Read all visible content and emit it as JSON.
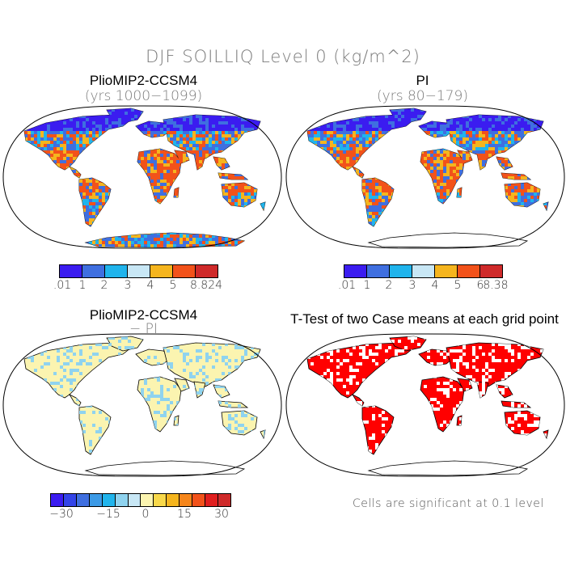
{
  "figure": {
    "title": "DJF SOILLIQ Level 0 (kg/m^2)"
  },
  "panels": [
    {
      "title": "PlioMIP2-CCSM4",
      "subtitle": "(yrs 1000−1099)"
    },
    {
      "title": "PI",
      "subtitle": "(yrs 80−179)"
    },
    {
      "title": "PlioMIP2-CCSM4",
      "subtitle": "− PI"
    },
    {
      "title": "T-Test of two Case means at each grid point",
      "subtitle": ""
    }
  ],
  "colorbars": {
    "top_left": {
      "colors": [
        "#3b1cf0",
        "#3f6fe0",
        "#20b4ec",
        "#c8e7f5",
        "#f5b51e",
        "#f2521a",
        "#cf2a2a"
      ],
      "labels": [
        ".01",
        "1",
        "2",
        "3",
        "4",
        "5",
        "8.824"
      ]
    },
    "top_right": {
      "colors": [
        "#3b1cf0",
        "#3f6fe0",
        "#20b4ec",
        "#c8e7f5",
        "#f5b51e",
        "#f2521a",
        "#cf2a2a"
      ],
      "labels": [
        ".01",
        "1",
        "2",
        "3",
        "4",
        "5",
        "6",
        "8.38"
      ]
    },
    "diff": {
      "colors": [
        "#3b1cf0",
        "#3344e8",
        "#3f6fe0",
        "#3c9ae6",
        "#20b4ec",
        "#8fd3ef",
        "#c8e7f5",
        "#fbf4b0",
        "#f8d84a",
        "#f5b51e",
        "#f5851a",
        "#f2521a",
        "#e01e1e",
        "#cf2a2a"
      ],
      "labels": [
        "−30",
        "−15",
        "0",
        "15",
        "30"
      ]
    }
  },
  "significance_note": "Cells are significant at 0.1 level",
  "palette": {
    "land_mix_top": [
      "#3b1cf0",
      "#3f6fe0",
      "#20b4ec",
      "#f5b51e",
      "#f2521a"
    ],
    "diff_fill": "#fbf4b0",
    "diff_spots": "#8fd3ef",
    "ttest_fill": "#ff0000"
  }
}
